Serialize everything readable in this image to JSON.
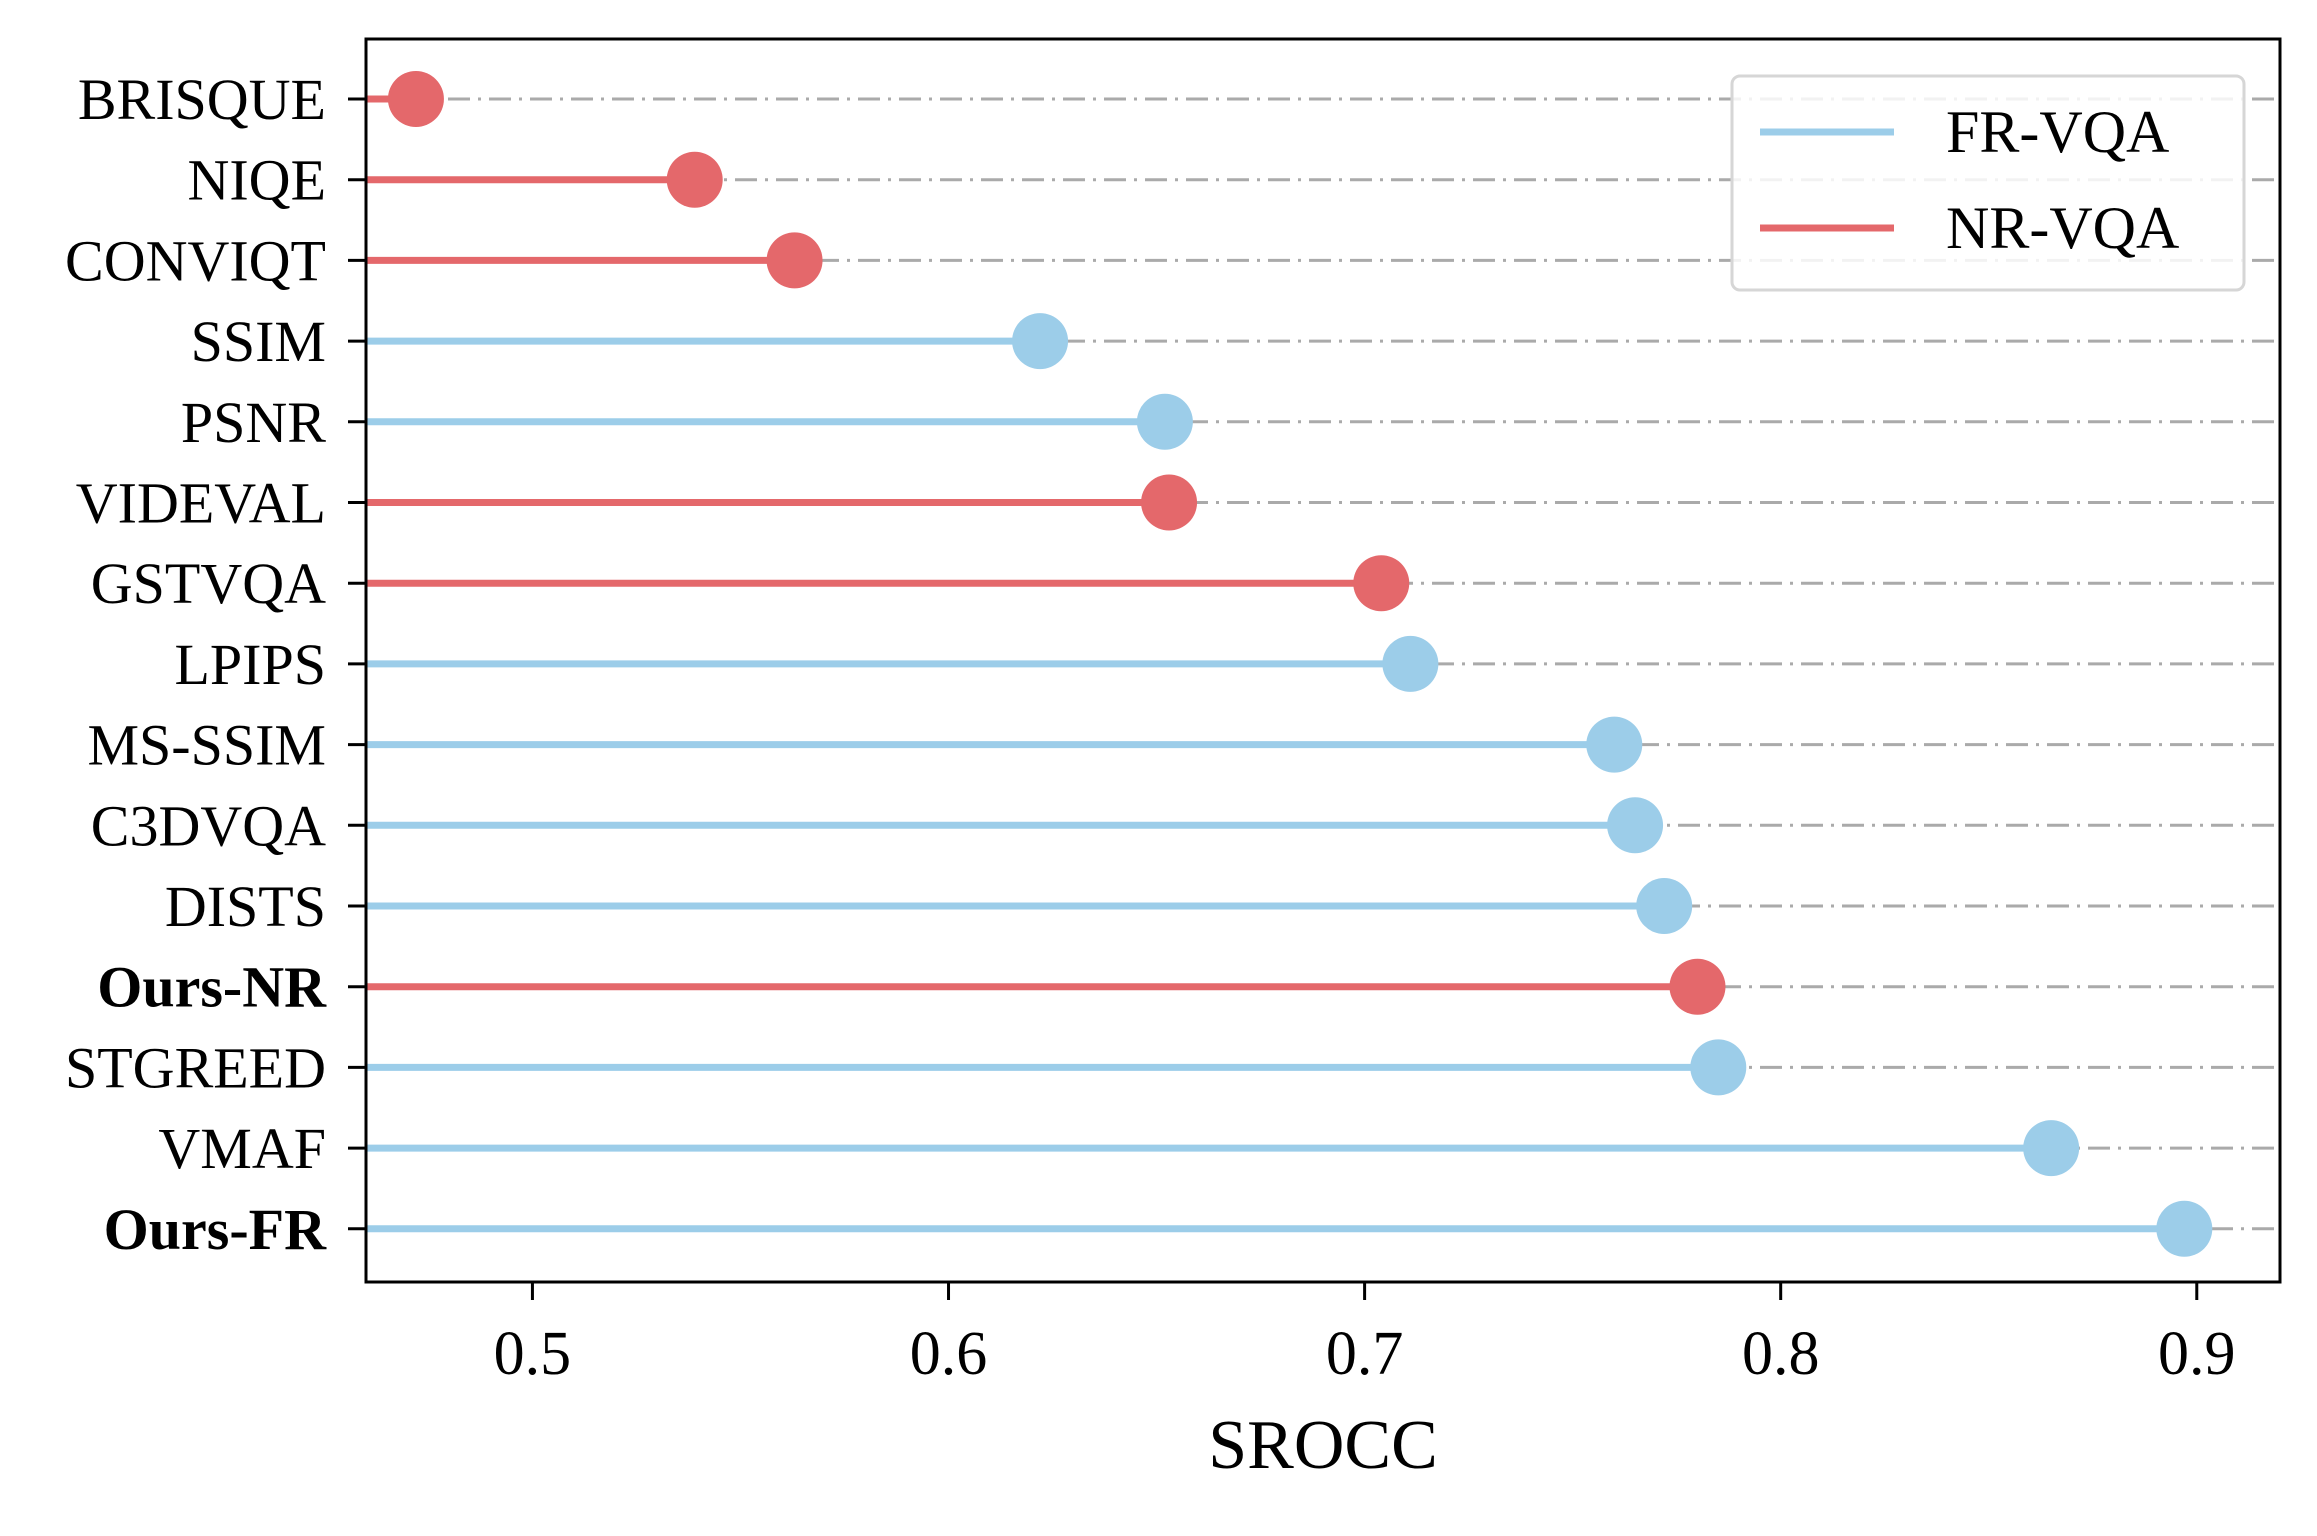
{
  "chart_data": {
    "type": "lollipop",
    "xlabel": "SROCC",
    "ylabel": "",
    "title": "",
    "xlim": [
      0.46,
      0.92
    ],
    "xticks": [
      0.5,
      0.6,
      0.7,
      0.8,
      0.9
    ],
    "xtick_labels": [
      "0.5",
      "0.6",
      "0.7",
      "0.8",
      "0.9"
    ],
    "grid": "horizontal dash-dot lines per row",
    "legend_position": "top-right",
    "legend": [
      {
        "name": "FR-VQA",
        "color": "#9ccde9"
      },
      {
        "name": "NR-VQA",
        "color": "#e4686b"
      }
    ],
    "points": [
      {
        "label": "BRISQUE",
        "value": 0.472,
        "group": "NR-VQA",
        "bold": false
      },
      {
        "label": "NIQE",
        "value": 0.539,
        "group": "NR-VQA",
        "bold": false
      },
      {
        "label": "CONVIQT",
        "value": 0.563,
        "group": "NR-VQA",
        "bold": false
      },
      {
        "label": "SSIM",
        "value": 0.622,
        "group": "FR-VQA",
        "bold": false
      },
      {
        "label": "PSNR",
        "value": 0.652,
        "group": "FR-VQA",
        "bold": false
      },
      {
        "label": "VIDEVAL",
        "value": 0.653,
        "group": "NR-VQA",
        "bold": false
      },
      {
        "label": "GSTVQA",
        "value": 0.704,
        "group": "NR-VQA",
        "bold": false
      },
      {
        "label": "LPIPS",
        "value": 0.711,
        "group": "FR-VQA",
        "bold": false
      },
      {
        "label": "MS-SSIM",
        "value": 0.76,
        "group": "FR-VQA",
        "bold": false
      },
      {
        "label": "C3DVQA",
        "value": 0.765,
        "group": "FR-VQA",
        "bold": false
      },
      {
        "label": "DISTS",
        "value": 0.772,
        "group": "FR-VQA",
        "bold": false
      },
      {
        "label": "Ours-NR",
        "value": 0.78,
        "group": "NR-VQA",
        "bold": true
      },
      {
        "label": "STGREED",
        "value": 0.785,
        "group": "FR-VQA",
        "bold": false
      },
      {
        "label": "VMAF",
        "value": 0.865,
        "group": "FR-VQA",
        "bold": false
      },
      {
        "label": "Ours-FR",
        "value": 0.897,
        "group": "FR-VQA",
        "bold": true
      }
    ]
  }
}
